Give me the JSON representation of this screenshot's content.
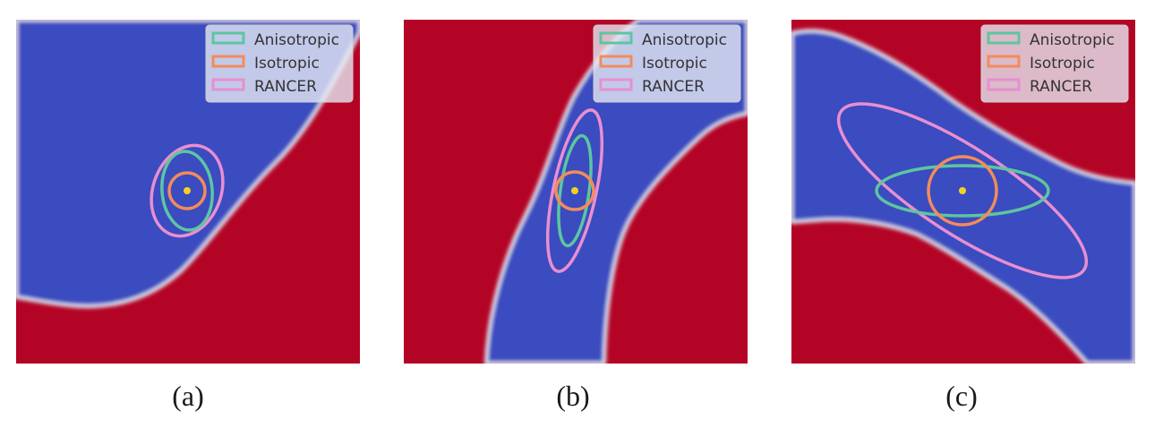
{
  "colors": {
    "blue_region": "#3b4cc0",
    "red_region": "#b40426",
    "anisotropic": "#5cc6a0",
    "isotropic": "#f28c5a",
    "rancer": "#e88fd0",
    "center_point": "#f2d024"
  },
  "legend": {
    "entries": [
      {
        "label": "Anisotropic",
        "color_key": "anisotropic"
      },
      {
        "label": "Isotropic",
        "color_key": "isotropic"
      },
      {
        "label": "RANCER",
        "color_key": "rancer"
      }
    ]
  },
  "panels": [
    {
      "caption": "(a)"
    },
    {
      "caption": "(b)"
    },
    {
      "caption": "(c)"
    }
  ]
}
